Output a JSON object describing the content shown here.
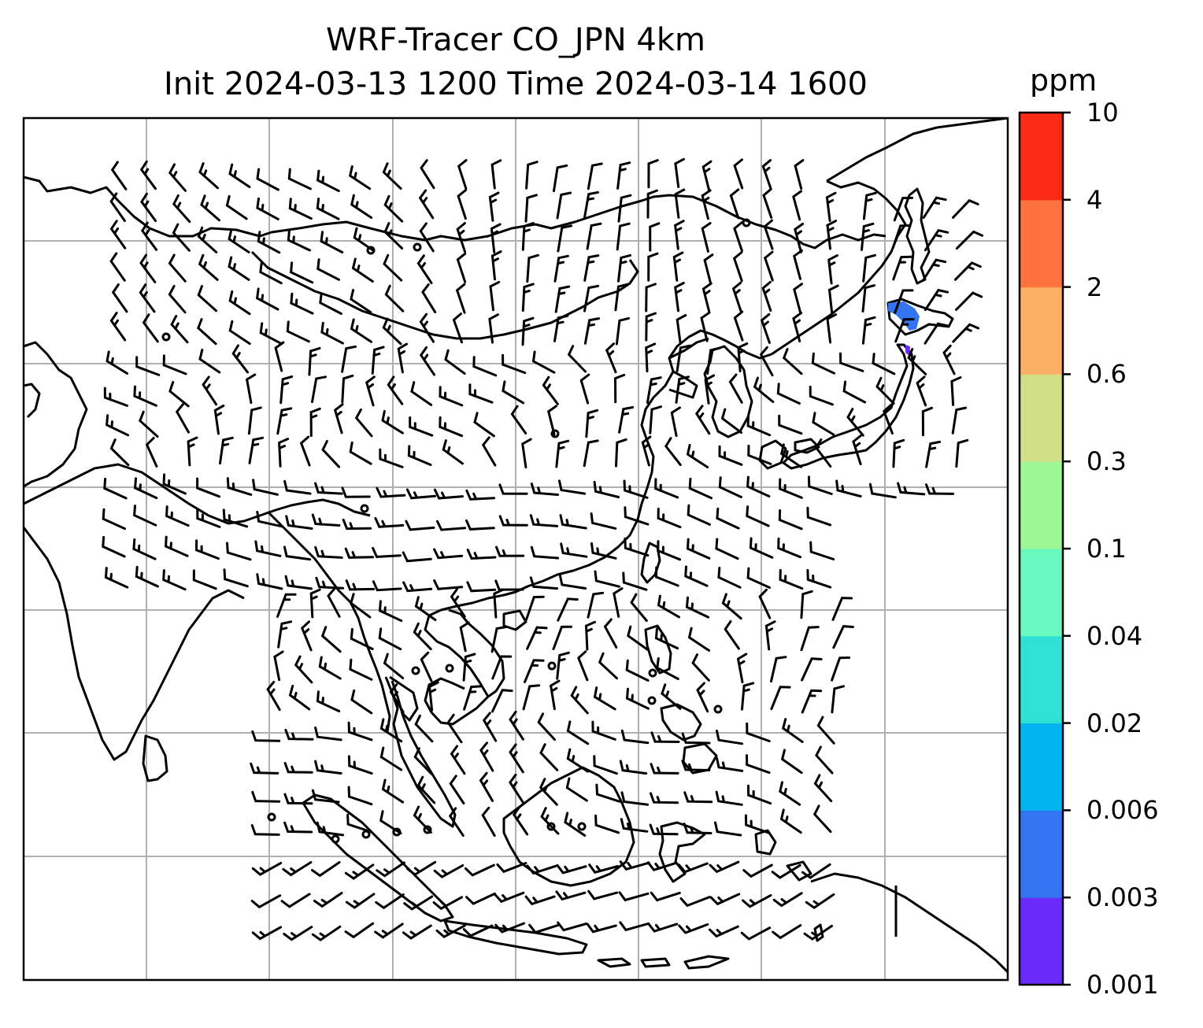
{
  "title": {
    "line1": "WRF-Tracer CO_JPN 4km",
    "line2": "Init 2024-03-13 1200 Time 2024-03-14 1600"
  },
  "colorbar": {
    "unit": "ppm",
    "levels": [
      "0.001",
      "0.003",
      "0.006",
      "0.02",
      "0.04",
      "0.1",
      "0.3",
      "0.6",
      "2",
      "4",
      "10"
    ],
    "colors": [
      "#6a2afa",
      "#3374f0",
      "#01b3ee",
      "#2fe0d4",
      "#69f9be",
      "#9df795",
      "#d1df86",
      "#fbb064",
      "#fe723e",
      "#fa2a14"
    ]
  },
  "map": {
    "gridlines": true,
    "tracer_plume_value_ppm": 0.002
  }
}
